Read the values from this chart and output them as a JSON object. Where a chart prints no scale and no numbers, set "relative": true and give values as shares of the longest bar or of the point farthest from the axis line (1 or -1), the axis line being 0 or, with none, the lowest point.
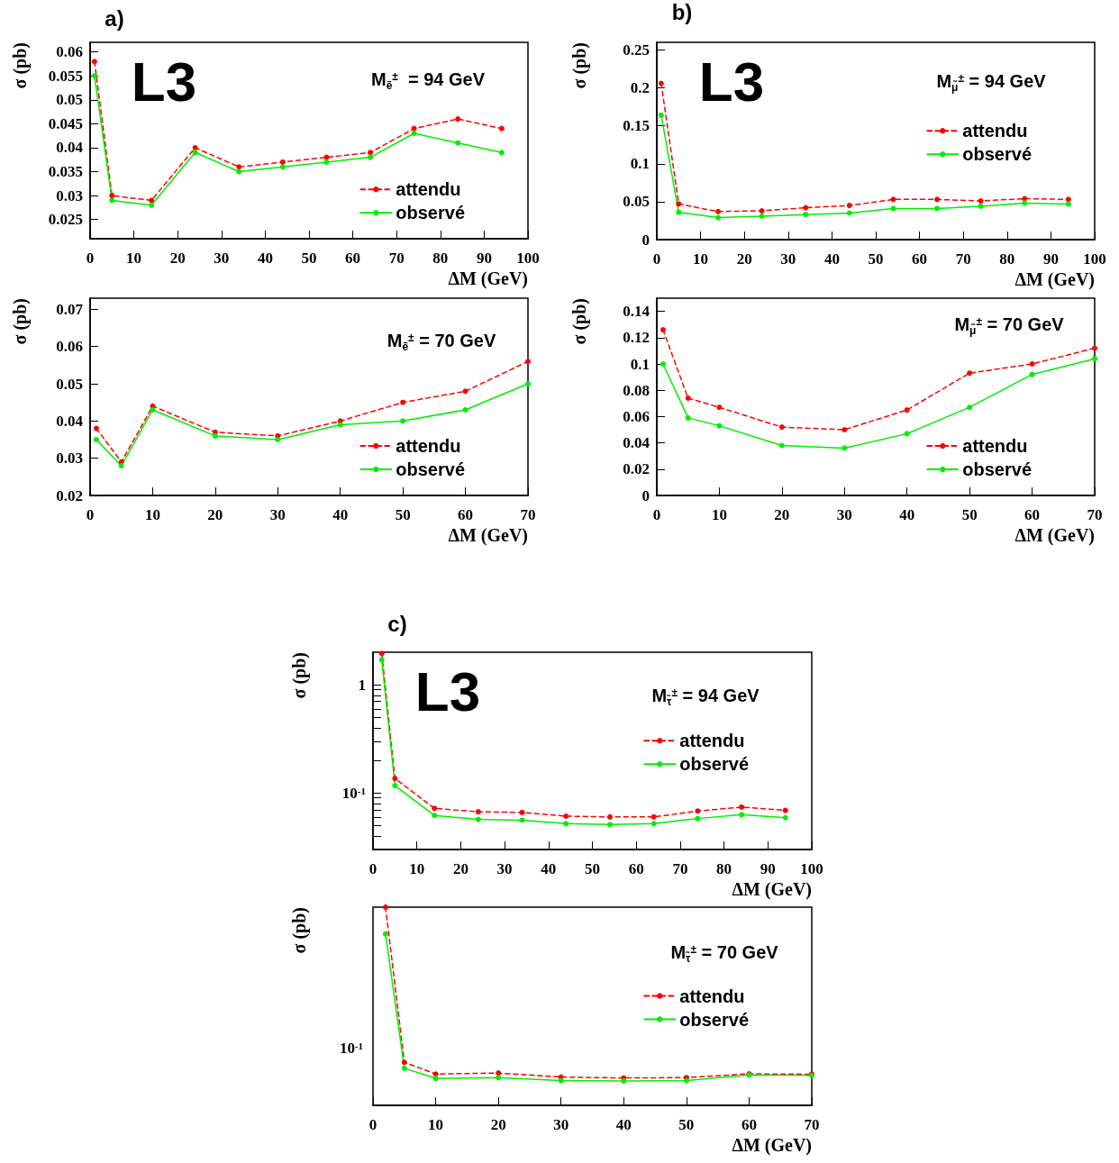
{
  "chart_data": [
    {
      "type": "line",
      "xlabel": "ΔM (GeV)",
      "ylabel": "σ (pb)",
      "annotations": [
        "a)",
        "L3",
        "M$_{ẽ}$$^{±}$  = 94 GeV"
      ],
      "x": [
        1,
        5,
        14,
        24,
        34,
        44,
        54,
        64,
        74,
        84,
        94
      ],
      "xlim": [
        0,
        100
      ],
      "xticks": [
        0,
        10,
        20,
        30,
        40,
        50,
        60,
        70,
        80,
        90,
        100
      ],
      "ylim": [
        0.021,
        0.062
      ],
      "yticks": [
        0.025,
        0.03,
        0.035,
        0.04,
        0.045,
        0.05,
        0.055,
        0.06
      ],
      "marker": "circle",
      "legend": "bottom right",
      "series": [
        {
          "name": "attendu",
          "color": "#ff0000",
          "line_style": "dashed",
          "values": [
            0.058,
            0.03,
            0.029,
            0.04,
            0.036,
            0.037,
            0.038,
            0.039,
            0.044,
            0.046,
            0.044
          ]
        },
        {
          "name": "observé",
          "color": "#00ee00",
          "line_style": "solid",
          "values": [
            0.055,
            0.029,
            0.028,
            0.039,
            0.035,
            0.036,
            0.037,
            0.038,
            0.043,
            0.041,
            0.039
          ]
        }
      ]
    },
    {
      "type": "line",
      "xlabel": "ΔM (GeV)",
      "ylabel": "σ (pb)",
      "annotations": [
        "b)",
        "L3",
        "M$_{μ̃}$$^{±}$ = 94 GeV"
      ],
      "x": [
        1,
        5,
        14,
        24,
        34,
        44,
        54,
        64,
        74,
        84,
        94
      ],
      "xlim": [
        0,
        100
      ],
      "xticks": [
        0,
        10,
        20,
        30,
        40,
        50,
        60,
        70,
        80,
        90,
        100
      ],
      "ylim": [
        0,
        0.26
      ],
      "yticks": [
        0,
        0.05,
        0.1,
        0.15,
        0.2,
        0.25
      ],
      "marker": "circle",
      "legend": "right",
      "series": [
        {
          "name": "attendu",
          "color": "#ff0000",
          "line_style": "dashed",
          "values": [
            0.206,
            0.047,
            0.037,
            0.038,
            0.042,
            0.045,
            0.053,
            0.053,
            0.051,
            0.054,
            0.053
          ]
        },
        {
          "name": "observé",
          "color": "#00ee00",
          "line_style": "solid",
          "values": [
            0.164,
            0.036,
            0.029,
            0.031,
            0.033,
            0.035,
            0.041,
            0.041,
            0.044,
            0.048,
            0.047
          ]
        }
      ]
    },
    {
      "type": "line",
      "xlabel": "ΔM (GeV)",
      "ylabel": "σ (pb)",
      "annotations": [
        "M$_{ẽ}$$^{±}$ = 70 GeV"
      ],
      "x": [
        1,
        5,
        10,
        20,
        30,
        40,
        50,
        60,
        70
      ],
      "xlim": [
        0,
        70
      ],
      "xticks": [
        0,
        10,
        20,
        30,
        40,
        50,
        60,
        70
      ],
      "ylim": [
        0.02,
        0.073
      ],
      "yticks": [
        0.02,
        0.03,
        0.04,
        0.05,
        0.06,
        0.07
      ],
      "marker": "circle",
      "legend": "bottom right",
      "series": [
        {
          "name": "attendu",
          "color": "#ff0000",
          "line_style": "dashed",
          "values": [
            0.038,
            0.029,
            0.044,
            0.037,
            0.036,
            0.04,
            0.045,
            0.048,
            0.056
          ]
        },
        {
          "name": "observé",
          "color": "#00ee00",
          "line_style": "solid",
          "values": [
            0.035,
            0.028,
            0.043,
            0.036,
            0.035,
            0.039,
            0.04,
            0.043,
            0.05
          ]
        }
      ]
    },
    {
      "type": "line",
      "xlabel": "ΔM (GeV)",
      "ylabel": "σ (pb)",
      "annotations": [
        "M$_{μ̃}$$^{±}$ = 70 GeV"
      ],
      "x": [
        1,
        5,
        10,
        20,
        30,
        40,
        50,
        60,
        70
      ],
      "xlim": [
        0,
        70
      ],
      "xticks": [
        0,
        10,
        20,
        30,
        40,
        50,
        60,
        70
      ],
      "ylim": [
        0,
        0.15
      ],
      "yticks": [
        0,
        0.02,
        0.04,
        0.06,
        0.08,
        0.1,
        0.12,
        0.14
      ],
      "marker": "circle",
      "legend": "bottom right",
      "series": [
        {
          "name": "attendu",
          "color": "#ff0000",
          "line_style": "dashed",
          "values": [
            0.126,
            0.074,
            0.067,
            0.052,
            0.05,
            0.065,
            0.093,
            0.1,
            0.112
          ]
        },
        {
          "name": "observé",
          "color": "#00ee00",
          "line_style": "solid",
          "values": [
            0.1,
            0.059,
            0.053,
            0.038,
            0.036,
            0.047,
            0.067,
            0.092,
            0.104
          ]
        }
      ]
    },
    {
      "type": "line",
      "xlabel": "ΔM (GeV)",
      "ylabel": "σ (pb)",
      "annotations": [
        "c)",
        "L3",
        "M$_{τ̃}$$^{±}$ = 94 GeV"
      ],
      "x": [
        2,
        5,
        14,
        24,
        34,
        44,
        54,
        64,
        74,
        84,
        94
      ],
      "xlim": [
        0,
        100
      ],
      "xticks": [
        0,
        10,
        20,
        30,
        40,
        50,
        60,
        70,
        80,
        90,
        100
      ],
      "log": true,
      "ylim": [
        0.03,
        2
      ],
      "yticks": [
        {
          "value": 0.04,
          "label": null
        },
        {
          "value": 0.05,
          "label": null
        },
        {
          "value": 0.06,
          "label": null
        },
        {
          "value": 0.07,
          "label": null
        },
        {
          "value": 0.08,
          "label": null
        },
        {
          "value": 0.09,
          "label": null
        },
        {
          "value": 0.1,
          "label": "10$^{-1}$"
        },
        {
          "value": 0.2,
          "label": null
        },
        {
          "value": 0.3,
          "label": null
        },
        {
          "value": 0.4,
          "label": null
        },
        {
          "value": 0.5,
          "label": null
        },
        {
          "value": 0.6,
          "label": null
        },
        {
          "value": 0.7,
          "label": null
        },
        {
          "value": 0.8,
          "label": null
        },
        {
          "value": 0.9,
          "label": null
        },
        1
      ],
      "marker": "circle",
      "legend": "right",
      "series": [
        {
          "name": "attendu",
          "color": "#ff0000",
          "line_style": "dashed",
          "values": [
            1.95,
            0.136,
            0.072,
            0.067,
            0.066,
            0.061,
            0.06,
            0.06,
            0.068,
            0.074,
            0.069
          ]
        },
        {
          "name": "observé",
          "color": "#00ee00",
          "line_style": "solid",
          "values": [
            1.7,
            0.117,
            0.062,
            0.057,
            0.056,
            0.052,
            0.051,
            0.052,
            0.058,
            0.063,
            0.059
          ]
        }
      ]
    },
    {
      "type": "line",
      "xlabel": "ΔM (GeV)",
      "ylabel": "σ (pb)",
      "annotations": [
        "M$_{τ̃}$$^{±}$ = 70 GeV",
        "10$^{-1}$"
      ],
      "x": [
        2,
        5,
        10,
        20,
        30,
        40,
        50,
        60,
        70
      ],
      "xlim": [
        0,
        70
      ],
      "xticks": [
        0,
        10,
        20,
        30,
        40,
        50,
        60,
        70
      ],
      "relative": true,
      "marker": "circle",
      "legend": "right",
      "series": [
        {
          "name": "attendu",
          "color": "#ff0000",
          "line_style": "dashed",
          "values": [
            1,
            0.217,
            0.158,
            0.163,
            0.143,
            0.138,
            0.14,
            0.159,
            0.157
          ]
        },
        {
          "name": "observé",
          "color": "#00ee00",
          "line_style": "solid",
          "values": [
            0.865,
            0.187,
            0.136,
            0.14,
            0.125,
            0.123,
            0.125,
            0.153,
            0.151
          ]
        }
      ]
    }
  ]
}
